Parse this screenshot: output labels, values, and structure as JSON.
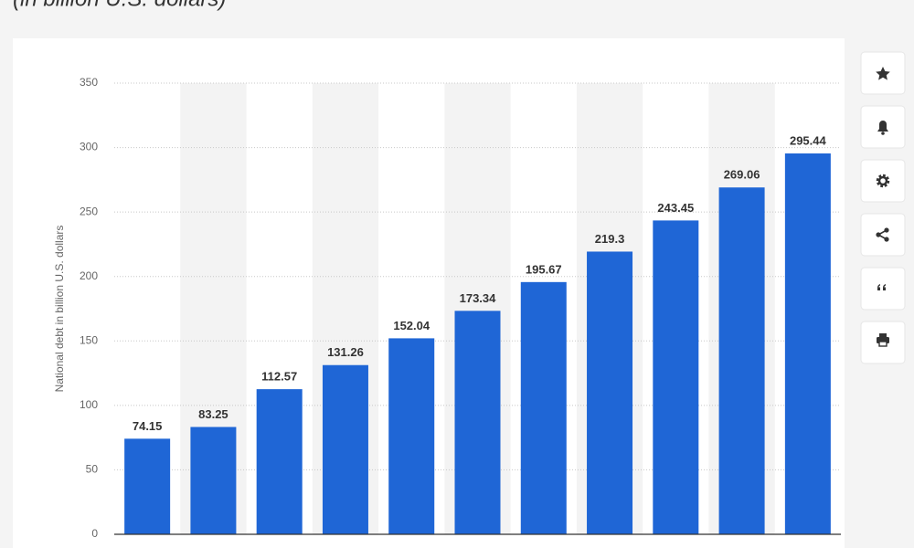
{
  "chart_data": {
    "type": "bar",
    "subtitle": "(in billion U.S. dollars)",
    "y_label": "National debt in billion U.S. dollars",
    "categories": [
      null,
      null,
      null,
      null,
      null,
      null,
      null,
      null,
      null,
      null,
      null
    ],
    "values": [
      74.15,
      83.25,
      112.57,
      131.26,
      152.04,
      173.34,
      195.67,
      219.3,
      243.45,
      269.06,
      295.44
    ],
    "color": "#1f66d6",
    "ylim": [
      0,
      350
    ],
    "yticks": [
      0,
      50,
      100,
      150,
      200,
      250,
      300,
      350
    ],
    "grid": true
  }
}
